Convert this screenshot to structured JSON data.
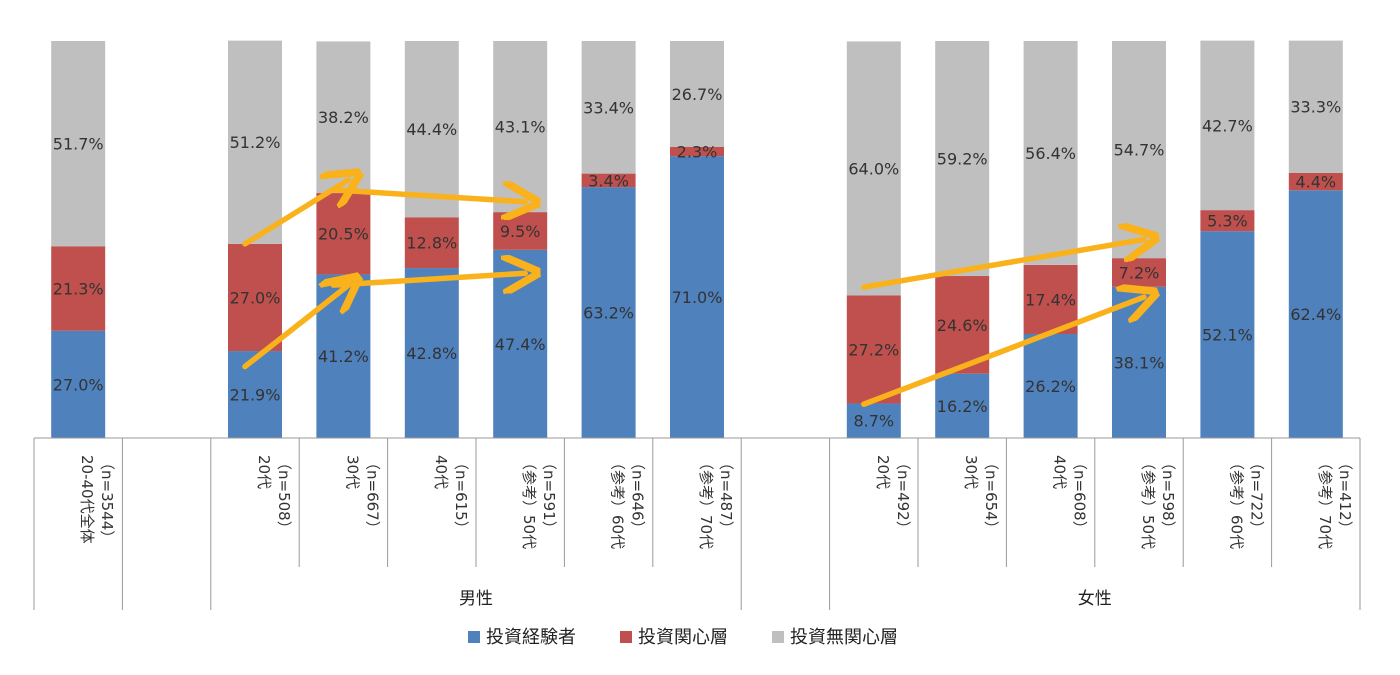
{
  "chart_data": {
    "type": "bar",
    "stacked": true,
    "stack_normalized": true,
    "ylim": [
      0,
      100
    ],
    "categories": [
      {
        "line1": "20-40代全体",
        "line2": "（n=3544）",
        "group": ""
      },
      {
        "line1": "",
        "line2": "",
        "group": ""
      },
      {
        "line1": "20代",
        "line2": "（n=508）",
        "group": "男性"
      },
      {
        "line1": "30代",
        "line2": "（n=667）",
        "group": "男性"
      },
      {
        "line1": "40代",
        "line2": "（n=615）",
        "group": "男性"
      },
      {
        "line1": "（参考）50代",
        "line2": "（n=591）",
        "group": "男性"
      },
      {
        "line1": "（参考）60代",
        "line2": "（n=646）",
        "group": "男性"
      },
      {
        "line1": "（参考）70代",
        "line2": "（n=487）",
        "group": "男性"
      },
      {
        "line1": "",
        "line2": "",
        "group": ""
      },
      {
        "line1": "20代",
        "line2": "（n=492）",
        "group": "女性"
      },
      {
        "line1": "30代",
        "line2": "（n=654）",
        "group": "女性"
      },
      {
        "line1": "40代",
        "line2": "（n=608）",
        "group": "女性"
      },
      {
        "line1": "（参考）50代",
        "line2": "（n=598）",
        "group": "女性"
      },
      {
        "line1": "（参考）60代",
        "line2": "（n=722）",
        "group": "女性"
      },
      {
        "line1": "（参考）70代",
        "line2": "（n=412）",
        "group": "女性"
      }
    ],
    "groups": [
      {
        "name": "男性"
      },
      {
        "name": "女性"
      }
    ],
    "series": [
      {
        "name": "投資経験者",
        "color": "#4f81bd",
        "values": [
          27.0,
          null,
          21.9,
          41.2,
          42.8,
          47.4,
          63.2,
          71.0,
          null,
          8.7,
          16.2,
          26.2,
          38.1,
          52.1,
          62.4
        ],
        "labels": [
          "27.0%",
          "",
          "21.9%",
          "41.2%",
          "42.8%",
          "47.4%",
          "63.2%",
          "71.0%",
          "",
          "8.7%",
          "16.2%",
          "26.2%",
          "38.1%",
          "52.1%",
          "62.4%"
        ]
      },
      {
        "name": "投資関心層",
        "color": "#c0504d",
        "values": [
          21.3,
          null,
          27.0,
          20.5,
          12.8,
          9.5,
          3.4,
          2.3,
          null,
          27.2,
          24.6,
          17.4,
          7.2,
          5.3,
          4.4
        ],
        "labels": [
          "21.3%",
          "",
          "27.0%",
          "20.5%",
          "12.8%",
          "9.5%",
          "3.4%",
          "2.3%",
          "",
          "27.2%",
          "24.6%",
          "17.4%",
          "7.2%",
          "5.3%",
          "4.4%"
        ]
      },
      {
        "name": "投資無関心層",
        "color": "#bfbfbf",
        "values": [
          51.7,
          null,
          51.2,
          38.2,
          44.4,
          43.1,
          33.4,
          26.7,
          null,
          64.0,
          59.2,
          56.4,
          54.7,
          42.7,
          33.3
        ],
        "labels": [
          "51.7%",
          "",
          "51.2%",
          "38.2%",
          "44.4%",
          "43.1%",
          "33.4%",
          "26.7%",
          "",
          "64.0%",
          "59.2%",
          "56.4%",
          "54.7%",
          "42.7%",
          "33.3%"
        ]
      }
    ],
    "annotations": {
      "arrow_color": "#f9b21b",
      "arrows": [
        {
          "from": {
            "category": 2,
            "value": 48.9
          },
          "to": {
            "category": 3,
            "value": 65.0
          }
        },
        {
          "from": {
            "category": 3,
            "value": 62.5
          },
          "to": {
            "category": 5,
            "value": 59.5
          }
        },
        {
          "from": {
            "category": 2,
            "value": 18.0
          },
          "to": {
            "category": 3,
            "value": 38.5
          }
        },
        {
          "from": {
            "category": 3,
            "value": 38.5
          },
          "to": {
            "category": 5,
            "value": 41.5
          }
        },
        {
          "from": {
            "category": 9,
            "value": 38.0
          },
          "to": {
            "category": 12,
            "value": 50.0
          }
        },
        {
          "from": {
            "category": 9,
            "value": 8.5
          },
          "to": {
            "category": 12,
            "value": 35.5
          }
        }
      ]
    },
    "legend": {
      "position": "bottom"
    }
  }
}
